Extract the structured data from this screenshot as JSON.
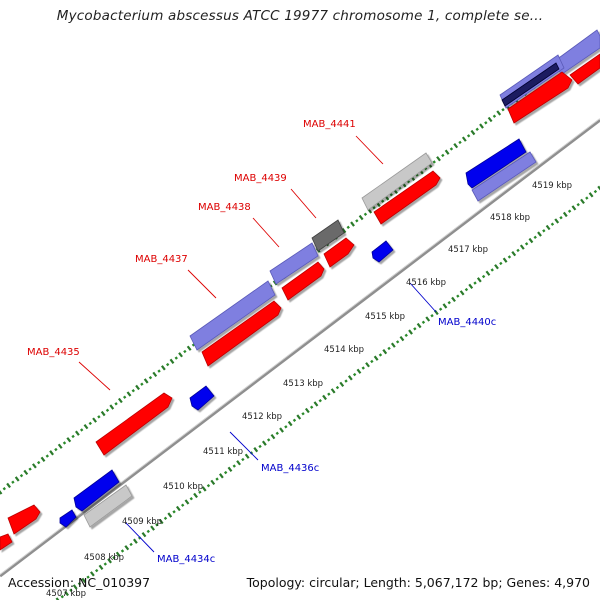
{
  "header": {
    "title": "Mycobacterium abscessus ATCC 19977 chromosome 1, complete se..."
  },
  "footer": {
    "accession": "Accession: NC_010397",
    "topology": "Topology: circular; Length: 5,067,172 bp; Genes: 4,970"
  },
  "colors": {
    "forward_cds": "#ff0000",
    "reverse_cds": "#0000ff",
    "forward_other": "#8080e0",
    "reverse_other": "#8080e0",
    "gray_feature": "#c0c0c0",
    "dark_feature": "#707070",
    "forward_label": "#dd0000",
    "reverse_label": "#0000cc",
    "backbone": "#909090",
    "tick_major": "#2a7a2a",
    "tick_minor": "#2a8a2a"
  },
  "ticks": [
    "4507 kbp",
    "4508 kbp",
    "4509 kbp",
    "4510 kbp",
    "4511 kbp",
    "4512 kbp",
    "4513 kbp",
    "4514 kbp",
    "4515 kbp",
    "4516 kbp",
    "4517 kbp",
    "4518 kbp",
    "4519 kbp"
  ],
  "gene_labels": [
    {
      "name": "MAB_4441",
      "strand": "forward"
    },
    {
      "name": "MAB_4439",
      "strand": "forward"
    },
    {
      "name": "MAB_4438",
      "strand": "forward"
    },
    {
      "name": "MAB_4437",
      "strand": "forward"
    },
    {
      "name": "MAB_4435",
      "strand": "forward"
    },
    {
      "name": "MAB_4440c",
      "strand": "reverse"
    },
    {
      "name": "MAB_4436c",
      "strand": "reverse"
    },
    {
      "name": "MAB_4434c",
      "strand": "reverse"
    }
  ]
}
